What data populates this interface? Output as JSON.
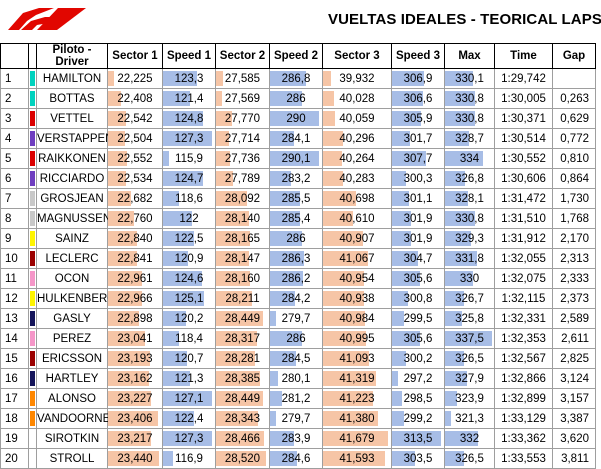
{
  "header": {
    "title": "VUELTAS IDEALES - TEORICAL LAPS"
  },
  "colors": {
    "logo": "#e10600",
    "sector_bar": "#f6c5a6",
    "speed_bar": "#a7bde6"
  },
  "table": {
    "columns": [
      "",
      "",
      "Piloto - Driver",
      "Sector 1",
      "Speed 1",
      "Sector 2",
      "Speed 2",
      "Sector 3",
      "Speed 3",
      "Max",
      "Time",
      "Gap"
    ],
    "rows": [
      {
        "pos": "1",
        "color": "#00d2be",
        "driver": "HAMILTON",
        "s1": "22,225",
        "v1": "123,3",
        "s2": "27,585",
        "v2": "286,8",
        "s3": "39,932",
        "v3": "306,9",
        "max": "330,1",
        "time": "1:29,742",
        "gap": ""
      },
      {
        "pos": "2",
        "color": "#00d2be",
        "driver": "BOTTAS",
        "s1": "22,408",
        "v1": "121,4",
        "s2": "27,569",
        "v2": "286",
        "s3": "40,028",
        "v3": "306,6",
        "max": "330,8",
        "time": "1:30,005",
        "gap": "0,263"
      },
      {
        "pos": "3",
        "color": "#dc0000",
        "driver": "VETTEL",
        "s1": "22,542",
        "v1": "124,8",
        "s2": "27,770",
        "v2": "290",
        "s3": "40,059",
        "v3": "305,9",
        "max": "330,8",
        "time": "1:30,371",
        "gap": "0,629"
      },
      {
        "pos": "4",
        "color": "#6f3ec0",
        "driver": "VERSTAPPEN",
        "s1": "22,504",
        "v1": "127,3",
        "s2": "27,714",
        "v2": "284,1",
        "s3": "40,296",
        "v3": "301,7",
        "max": "328,7",
        "time": "1:30,514",
        "gap": "0,772"
      },
      {
        "pos": "5",
        "color": "#dc0000",
        "driver": "RAIKKONEN",
        "s1": "22,552",
        "v1": "115,9",
        "s2": "27,736",
        "v2": "290,1",
        "s3": "40,264",
        "v3": "307,7",
        "max": "334",
        "time": "1:30,552",
        "gap": "0,810"
      },
      {
        "pos": "6",
        "color": "#6f3ec0",
        "driver": "RICCIARDO",
        "s1": "22,534",
        "v1": "124,7",
        "s2": "27,789",
        "v2": "283,2",
        "s3": "40,283",
        "v3": "300,3",
        "max": "326,8",
        "time": "1:30,606",
        "gap": "0,864"
      },
      {
        "pos": "7",
        "color": "#c8c8c8",
        "driver": "GROSJEAN",
        "s1": "22,682",
        "v1": "118,6",
        "s2": "28,092",
        "v2": "285,5",
        "s3": "40,698",
        "v3": "301,1",
        "max": "328,1",
        "time": "1:31,472",
        "gap": "1,730"
      },
      {
        "pos": "8",
        "color": "#c8c8c8",
        "driver": "MAGNUSSEN",
        "s1": "22,760",
        "v1": "122",
        "s2": "28,140",
        "v2": "285,4",
        "s3": "40,610",
        "v3": "301,9",
        "max": "330,8",
        "time": "1:31,510",
        "gap": "1,768"
      },
      {
        "pos": "9",
        "color": "#fff500",
        "driver": "SAINZ",
        "s1": "22,840",
        "v1": "122,5",
        "s2": "28,165",
        "v2": "286",
        "s3": "40,907",
        "v3": "301,9",
        "max": "329,3",
        "time": "1:31,912",
        "gap": "2,170"
      },
      {
        "pos": "10",
        "color": "#9b0000",
        "driver": "LECLERC",
        "s1": "22,841",
        "v1": "120,9",
        "s2": "28,147",
        "v2": "286,3",
        "s3": "41,067",
        "v3": "304,7",
        "max": "331,8",
        "time": "1:32,055",
        "gap": "2,313"
      },
      {
        "pos": "11",
        "color": "#f596c8",
        "driver": "OCON",
        "s1": "22,961",
        "v1": "124,6",
        "s2": "28,160",
        "v2": "286,2",
        "s3": "40,954",
        "v3": "305,6",
        "max": "330",
        "time": "1:32,075",
        "gap": "2,333"
      },
      {
        "pos": "12",
        "color": "#fff500",
        "driver": "HULKENBERG",
        "s1": "22,966",
        "v1": "125,1",
        "s2": "28,211",
        "v2": "284,2",
        "s3": "40,938",
        "v3": "300,8",
        "max": "326,7",
        "time": "1:32,115",
        "gap": "2,373"
      },
      {
        "pos": "13",
        "color": "#14145a",
        "driver": "GASLY",
        "s1": "22,898",
        "v1": "120,2",
        "s2": "28,449",
        "v2": "279,7",
        "s3": "40,984",
        "v3": "299,5",
        "max": "325,8",
        "time": "1:32,331",
        "gap": "2,589"
      },
      {
        "pos": "14",
        "color": "#f596c8",
        "driver": "PEREZ",
        "s1": "23,041",
        "v1": "118,4",
        "s2": "28,317",
        "v2": "286",
        "s3": "40,995",
        "v3": "305,6",
        "max": "337,5",
        "time": "1:32,353",
        "gap": "2,611"
      },
      {
        "pos": "15",
        "color": "#9b0000",
        "driver": "ERICSSON",
        "s1": "23,193",
        "v1": "120,7",
        "s2": "28,281",
        "v2": "284,5",
        "s3": "41,093",
        "v3": "300,2",
        "max": "326,5",
        "time": "1:32,567",
        "gap": "2,825"
      },
      {
        "pos": "16",
        "color": "#14145a",
        "driver": "HARTLEY",
        "s1": "23,162",
        "v1": "121,3",
        "s2": "28,385",
        "v2": "280,1",
        "s3": "41,319",
        "v3": "297,2",
        "max": "327,9",
        "time": "1:32,866",
        "gap": "3,124"
      },
      {
        "pos": "17",
        "color": "#ff8700",
        "driver": "ALONSO",
        "s1": "23,227",
        "v1": "127,1",
        "s2": "28,449",
        "v2": "281,2",
        "s3": "41,223",
        "v3": "298,5",
        "max": "323,9",
        "time": "1:32,899",
        "gap": "3,157"
      },
      {
        "pos": "18",
        "color": "#ff8700",
        "driver": "VANDOORNE",
        "s1": "23,406",
        "v1": "122,4",
        "s2": "28,343",
        "v2": "279,7",
        "s3": "41,380",
        "v3": "299,2",
        "max": "321,3",
        "time": "1:33,129",
        "gap": "3,387"
      },
      {
        "pos": "19",
        "color": "#ffffff",
        "driver": "SIROTKIN",
        "s1": "23,217",
        "v1": "127,3",
        "s2": "28,466",
        "v2": "283,9",
        "s3": "41,679",
        "v3": "313,5",
        "max": "332",
        "time": "1:33,362",
        "gap": "3,620"
      },
      {
        "pos": "20",
        "color": "#ffffff",
        "driver": "STROLL",
        "s1": "23,440",
        "v1": "116,9",
        "s2": "28,520",
        "v2": "284,6",
        "s3": "41,593",
        "v3": "303,5",
        "max": "326,5",
        "time": "1:33,553",
        "gap": "3,811"
      }
    ]
  }
}
